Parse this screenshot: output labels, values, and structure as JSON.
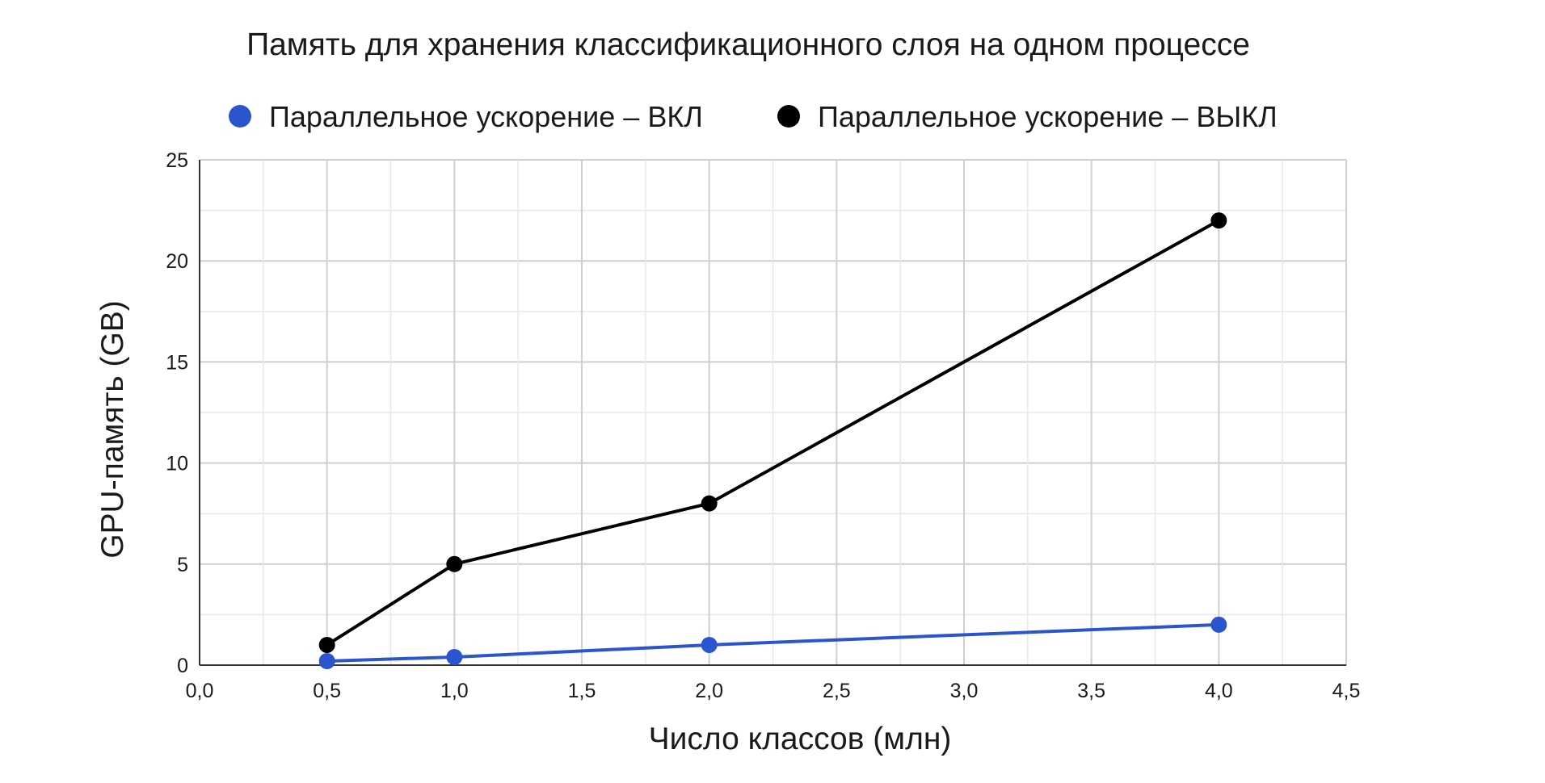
{
  "chart_data": {
    "type": "line",
    "title": "Память для хранения классификационного слоя на одном процессе",
    "xlabel": "Число классов (млн)",
    "ylabel": "GPU-память (GB)",
    "xlim": [
      0,
      4.5
    ],
    "ylim": [
      0,
      25
    ],
    "x_ticks": [
      "0,0",
      "0,5",
      "1,0",
      "1,5",
      "2,0",
      "2,5",
      "3,0",
      "3,5",
      "4,0",
      "4,5"
    ],
    "y_ticks": [
      "0",
      "5",
      "10",
      "15",
      "20",
      "25"
    ],
    "grid": true,
    "legend_position": "top",
    "series": [
      {
        "name": "Параллельное ускорение – ВКЛ",
        "color": "#2b55cf",
        "x": [
          0.5,
          1.0,
          2.0,
          4.0
        ],
        "y": [
          0.2,
          0.4,
          1.0,
          2.0
        ]
      },
      {
        "name": "Параллельное ускорение – ВЫКЛ",
        "color": "#000000",
        "x": [
          0.5,
          1.0,
          2.0,
          4.0
        ],
        "y": [
          1.0,
          5.0,
          8.0,
          22.0
        ]
      }
    ]
  }
}
